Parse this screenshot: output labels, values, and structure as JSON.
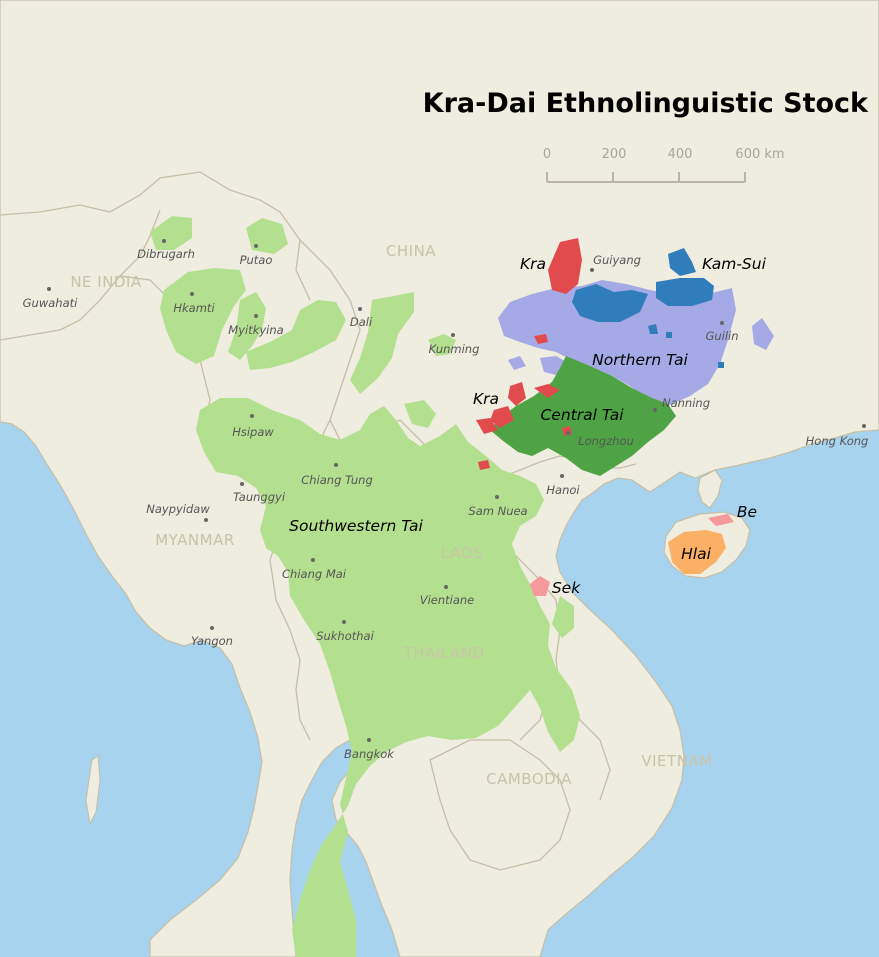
{
  "title": "Kra-Dai Ethnolinguistic Stock",
  "scale": {
    "ticks": [
      "0",
      "200",
      "400",
      "600 km"
    ]
  },
  "countries": {
    "ne_india": "NE INDIA",
    "china": "CHINA",
    "myanmar": "MYANMAR",
    "laos": "LAOS",
    "thailand": "THAILAND",
    "cambodia": "CAMBODIA",
    "vietnam": "VIETNAM"
  },
  "cities": {
    "dibrugarh": "Dibrugarh",
    "putao": "Putao",
    "guwahati": "Guwahati",
    "hkamti": "Hkamti",
    "myitkyina": "Myitkyina",
    "dali": "Dali",
    "kunming": "Kunming",
    "guiyang": "Guiyang",
    "guilin": "Guilin",
    "nanning": "Nanning",
    "longzhou": "Longzhou",
    "hong_kong": "Hong Kong",
    "hsipaw": "Hsipaw",
    "chiang_tung": "Chiang Tung",
    "taunggyi": "Taunggyi",
    "naypyidaw": "Naypyidaw",
    "hanoi": "Hanoi",
    "sam_nuea": "Sam Nuea",
    "chiang_mai": "Chiang Mai",
    "vientiane": "Vientiane",
    "yangon": "Yangon",
    "sukhothai": "Sukhothai",
    "bangkok": "Bangkok"
  },
  "groups": {
    "kra_north": "Kra",
    "kam_sui": "Kam-Sui",
    "northern_tai": "Northern Tai",
    "kra_south": "Kra",
    "central_tai": "Central Tai",
    "southwestern_tai": "Southwestern Tai",
    "be": "Be",
    "hlai": "Hlai",
    "sek": "Sek"
  },
  "colors": {
    "sea": "#a8d3ef",
    "land": "#efece0",
    "border": "#c4bfa6",
    "southwestern_tai": "#b3e08f",
    "central_tai": "#4ea444",
    "northern_tai": "#a5aae6",
    "kam_sui": "#2f7dba",
    "kra": "#e24b4e",
    "hlai": "#fbb066",
    "be_sek": "#f5999b"
  }
}
